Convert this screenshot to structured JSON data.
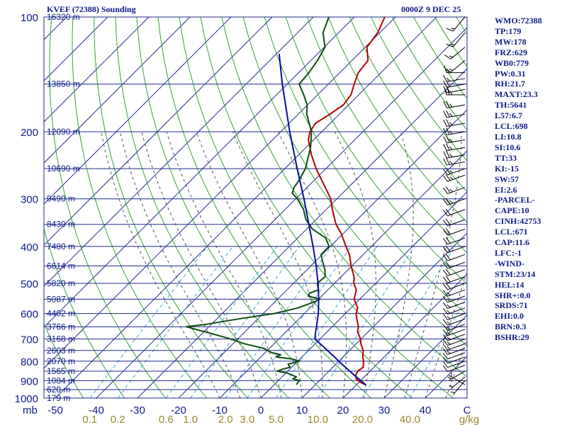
{
  "header": {
    "station_title": "KVEF (72388) Sounding",
    "time_title": "0000Z  9 DEC 25"
  },
  "stats": [
    "WMO:72388",
    "TP:179",
    "MW:178",
    "FRZ:629",
    "WB0:779",
    "PW:0.31",
    "RH:21.7",
    "MAXT:23.3",
    "TH:5641",
    "L57:6.7",
    "LCL:698",
    "LI:10.8",
    "SI:10.6",
    "TT:33",
    "KI:-15",
    "SW:57",
    "EI:2.6",
    "-PARCEL-",
    "CAPE:10",
    "CINH:42753",
    "LCL:671",
    "CAP:11.6",
    "LFC:-1",
    "-WIND-",
    "STM:23/14",
    "HEL:14",
    "SHR+:0.0",
    "SRDS:71",
    "EHI:0.0",
    "BRN:0.3",
    "BSHR:29"
  ],
  "chart_data": {
    "type": "skew-t log-p sounding",
    "x_unit": "C",
    "y_unit": "mb",
    "xlim": [
      -50,
      50
    ],
    "ylim": [
      1000,
      100
    ],
    "x_ticks": [
      -50,
      -40,
      -30,
      -20,
      -10,
      0,
      10,
      20,
      30,
      40
    ],
    "x_tick_labels": [
      "-50",
      "-40",
      "-30",
      "-20",
      "-10",
      "0",
      "10",
      "20",
      "30",
      "40"
    ],
    "x_unit_label": "C",
    "y_ticks": [
      100,
      200,
      300,
      400,
      500,
      600,
      700,
      800,
      900,
      1000
    ],
    "y_axis_unit_label": "mb",
    "mixing_ratio_labels": [
      "0.1",
      "0.2",
      "0.6",
      "1.0",
      "2.0",
      "3.0",
      "5.0",
      "10.0",
      "20.0",
      "40.0"
    ],
    "mixing_ratio_unit": "g/kg",
    "height_levels": [
      {
        "p": 100,
        "label": "16320 m"
      },
      {
        "p": 150,
        "label": "13850 m"
      },
      {
        "p": 200,
        "label": "12090 m"
      },
      {
        "p": 250,
        "label": "10690 m"
      },
      {
        "p": 300,
        "label": "9490 m"
      },
      {
        "p": 350,
        "label": "8430 m"
      },
      {
        "p": 400,
        "label": "7480 m"
      },
      {
        "p": 450,
        "label": "6614 m"
      },
      {
        "p": 500,
        "label": "5820 m"
      },
      {
        "p": 550,
        "label": "5087 m"
      },
      {
        "p": 600,
        "label": "4402 m"
      },
      {
        "p": 650,
        "label": "3766 m"
      },
      {
        "p": 700,
        "label": "3168 m"
      },
      {
        "p": 750,
        "label": "2603 m"
      },
      {
        "p": 800,
        "label": "2070 m"
      },
      {
        "p": 850,
        "label": "1565 m"
      },
      {
        "p": 900,
        "label": "1084 m"
      },
      {
        "p": 950,
        "label": "620 m"
      },
      {
        "p": 1000,
        "label": "179 m"
      }
    ],
    "series": [
      {
        "name": "Temperature",
        "color": "#b40000",
        "points": [
          [
            922,
            22.1
          ],
          [
            910,
            20.5
          ],
          [
            890,
            18.5
          ],
          [
            870,
            17.5
          ],
          [
            850,
            17.0
          ],
          [
            830,
            17.4
          ],
          [
            800,
            16.0
          ],
          [
            780,
            14.8
          ],
          [
            750,
            13.3
          ],
          [
            720,
            11.1
          ],
          [
            700,
            9.9
          ],
          [
            670,
            7.4
          ],
          [
            650,
            6.4
          ],
          [
            620,
            4.1
          ],
          [
            600,
            2.6
          ],
          [
            580,
            1.6
          ],
          [
            550,
            -1.4
          ],
          [
            520,
            -3.1
          ],
          [
            500,
            -5.3
          ],
          [
            480,
            -6.9
          ],
          [
            450,
            -10.2
          ],
          [
            420,
            -13.4
          ],
          [
            400,
            -16.2
          ],
          [
            370,
            -20.5
          ],
          [
            350,
            -24.0
          ],
          [
            320,
            -28.5
          ],
          [
            300,
            -31.5
          ],
          [
            280,
            -35.6
          ],
          [
            250,
            -42.4
          ],
          [
            230,
            -46.9
          ],
          [
            210,
            -51.3
          ],
          [
            200,
            -52.9
          ],
          [
            190,
            -53.6
          ],
          [
            180,
            -52.3
          ],
          [
            170,
            -51.3
          ],
          [
            160,
            -51.9
          ],
          [
            150,
            -53.7
          ],
          [
            140,
            -55.5
          ],
          [
            130,
            -56.1
          ],
          [
            120,
            -59.6
          ],
          [
            110,
            -60.5
          ],
          [
            100,
            -62.6
          ]
        ]
      },
      {
        "name": "Dewpoint",
        "color": "#0e4d0e",
        "points": [
          [
            922,
            5.4
          ],
          [
            910,
            5.2
          ],
          [
            900,
            5.2
          ],
          [
            890,
            3.1
          ],
          [
            880,
            3.5
          ],
          [
            870,
            2.0
          ],
          [
            860,
            0.3
          ],
          [
            850,
            -2.6
          ],
          [
            840,
            -1.8
          ],
          [
            830,
            -0.4
          ],
          [
            815,
            -1.6
          ],
          [
            800,
            0.5
          ],
          [
            790,
            -1.8
          ],
          [
            780,
            -6.3
          ],
          [
            770,
            -5.7
          ],
          [
            760,
            -8.4
          ],
          [
            740,
            -11.5
          ],
          [
            720,
            -17.3
          ],
          [
            700,
            -21.6
          ],
          [
            680,
            -26.9
          ],
          [
            660,
            -32.6
          ],
          [
            650,
            -35.5
          ],
          [
            640,
            -31.1
          ],
          [
            620,
            -24.8
          ],
          [
            600,
            -17.3
          ],
          [
            580,
            -12.9
          ],
          [
            560,
            -10.5
          ],
          [
            550,
            -9.7
          ],
          [
            540,
            -13.3
          ],
          [
            530,
            -13.7
          ],
          [
            520,
            -12.3
          ],
          [
            500,
            -14.2
          ],
          [
            480,
            -13.9
          ],
          [
            460,
            -15.7
          ],
          [
            440,
            -18.0
          ],
          [
            420,
            -20.3
          ],
          [
            400,
            -20.3
          ],
          [
            380,
            -23.2
          ],
          [
            360,
            -28.6
          ],
          [
            340,
            -32.5
          ],
          [
            320,
            -35.5
          ],
          [
            300,
            -39.6
          ],
          [
            290,
            -42.2
          ],
          [
            280,
            -43.2
          ],
          [
            270,
            -43.6
          ],
          [
            250,
            -45.0
          ],
          [
            220,
            -48.9
          ],
          [
            200,
            -52.5
          ],
          [
            180,
            -57.9
          ],
          [
            170,
            -60.1
          ],
          [
            160,
            -63.4
          ],
          [
            150,
            -67.1
          ],
          [
            140,
            -67.5
          ],
          [
            130,
            -68.4
          ],
          [
            120,
            -69.8
          ],
          [
            110,
            -73.8
          ],
          [
            100,
            -76.2
          ]
        ]
      },
      {
        "name": "Parcel",
        "color": "#0a0aa0",
        "points": [
          [
            925,
            22.5
          ],
          [
            900,
            20.1
          ],
          [
            870,
            17.1
          ],
          [
            840,
            14.1
          ],
          [
            810,
            11.0
          ],
          [
            780,
            7.9
          ],
          [
            750,
            4.6
          ],
          [
            720,
            1.2
          ],
          [
            700,
            -1.2
          ],
          [
            680,
            -2.3
          ],
          [
            650,
            -3.8
          ],
          [
            600,
            -6.6
          ],
          [
            550,
            -10.0
          ],
          [
            500,
            -14.0
          ],
          [
            450,
            -18.7
          ],
          [
            400,
            -24.2
          ],
          [
            350,
            -30.6
          ],
          [
            300,
            -38.0
          ],
          [
            250,
            -47.0
          ],
          [
            200,
            -57.8
          ],
          [
            150,
            -71.2
          ],
          [
            125,
            -79.3
          ]
        ]
      }
    ],
    "barbs": {
      "color": "#000000",
      "points": [
        {
          "p": 922,
          "dir": 300,
          "spd": 5
        },
        {
          "p": 900,
          "dir": 220,
          "spd": 5
        },
        {
          "p": 880,
          "dir": 230,
          "spd": 5
        },
        {
          "p": 850,
          "dir": 240,
          "spd": 5
        },
        {
          "p": 820,
          "dir": 250,
          "spd": 10
        },
        {
          "p": 800,
          "dir": 250,
          "spd": 10
        },
        {
          "p": 780,
          "dir": 250,
          "spd": 10
        },
        {
          "p": 760,
          "dir": 250,
          "spd": 10
        },
        {
          "p": 740,
          "dir": 250,
          "spd": 15
        },
        {
          "p": 720,
          "dir": 250,
          "spd": 15
        },
        {
          "p": 700,
          "dir": 250,
          "spd": 15
        },
        {
          "p": 680,
          "dir": 250,
          "spd": 15
        },
        {
          "p": 660,
          "dir": 250,
          "spd": 15
        },
        {
          "p": 640,
          "dir": 250,
          "spd": 15
        },
        {
          "p": 620,
          "dir": 250,
          "spd": 15
        },
        {
          "p": 600,
          "dir": 250,
          "spd": 15
        },
        {
          "p": 580,
          "dir": 250,
          "spd": 15
        },
        {
          "p": 560,
          "dir": 250,
          "spd": 15
        },
        {
          "p": 540,
          "dir": 250,
          "spd": 15
        },
        {
          "p": 520,
          "dir": 250,
          "spd": 15
        },
        {
          "p": 500,
          "dir": 250,
          "spd": 20
        },
        {
          "p": 480,
          "dir": 250,
          "spd": 20
        },
        {
          "p": 460,
          "dir": 250,
          "spd": 20
        },
        {
          "p": 440,
          "dir": 250,
          "spd": 20
        },
        {
          "p": 420,
          "dir": 250,
          "spd": 20
        },
        {
          "p": 400,
          "dir": 250,
          "spd": 20
        },
        {
          "p": 380,
          "dir": 250,
          "spd": 20
        },
        {
          "p": 360,
          "dir": 250,
          "spd": 20
        },
        {
          "p": 340,
          "dir": 250,
          "spd": 20
        },
        {
          "p": 320,
          "dir": 250,
          "spd": 20
        },
        {
          "p": 300,
          "dir": 250,
          "spd": 25
        },
        {
          "p": 280,
          "dir": 250,
          "spd": 25
        },
        {
          "p": 260,
          "dir": 250,
          "spd": 25
        },
        {
          "p": 250,
          "dir": 250,
          "spd": 25
        },
        {
          "p": 240,
          "dir": 260,
          "spd": 25
        },
        {
          "p": 230,
          "dir": 260,
          "spd": 25
        },
        {
          "p": 220,
          "dir": 260,
          "spd": 25
        },
        {
          "p": 210,
          "dir": 260,
          "spd": 25
        },
        {
          "p": 200,
          "dir": 260,
          "spd": 25
        },
        {
          "p": 190,
          "dir": 260,
          "spd": 25
        },
        {
          "p": 180,
          "dir": 260,
          "spd": 25
        },
        {
          "p": 170,
          "dir": 260,
          "spd": 25
        },
        {
          "p": 160,
          "dir": 270,
          "spd": 25
        },
        {
          "p": 155,
          "dir": 260,
          "spd": 20
        },
        {
          "p": 150,
          "dir": 260,
          "spd": 20
        },
        {
          "p": 145,
          "dir": 260,
          "spd": 15
        },
        {
          "p": 140,
          "dir": 270,
          "spd": 15
        },
        {
          "p": 130,
          "dir": 230,
          "spd": 15
        },
        {
          "p": 120,
          "dir": 230,
          "spd": 15
        },
        {
          "p": 110,
          "dir": 220,
          "spd": 15
        },
        {
          "p": 100,
          "dir": 220,
          "spd": 15
        }
      ]
    }
  }
}
